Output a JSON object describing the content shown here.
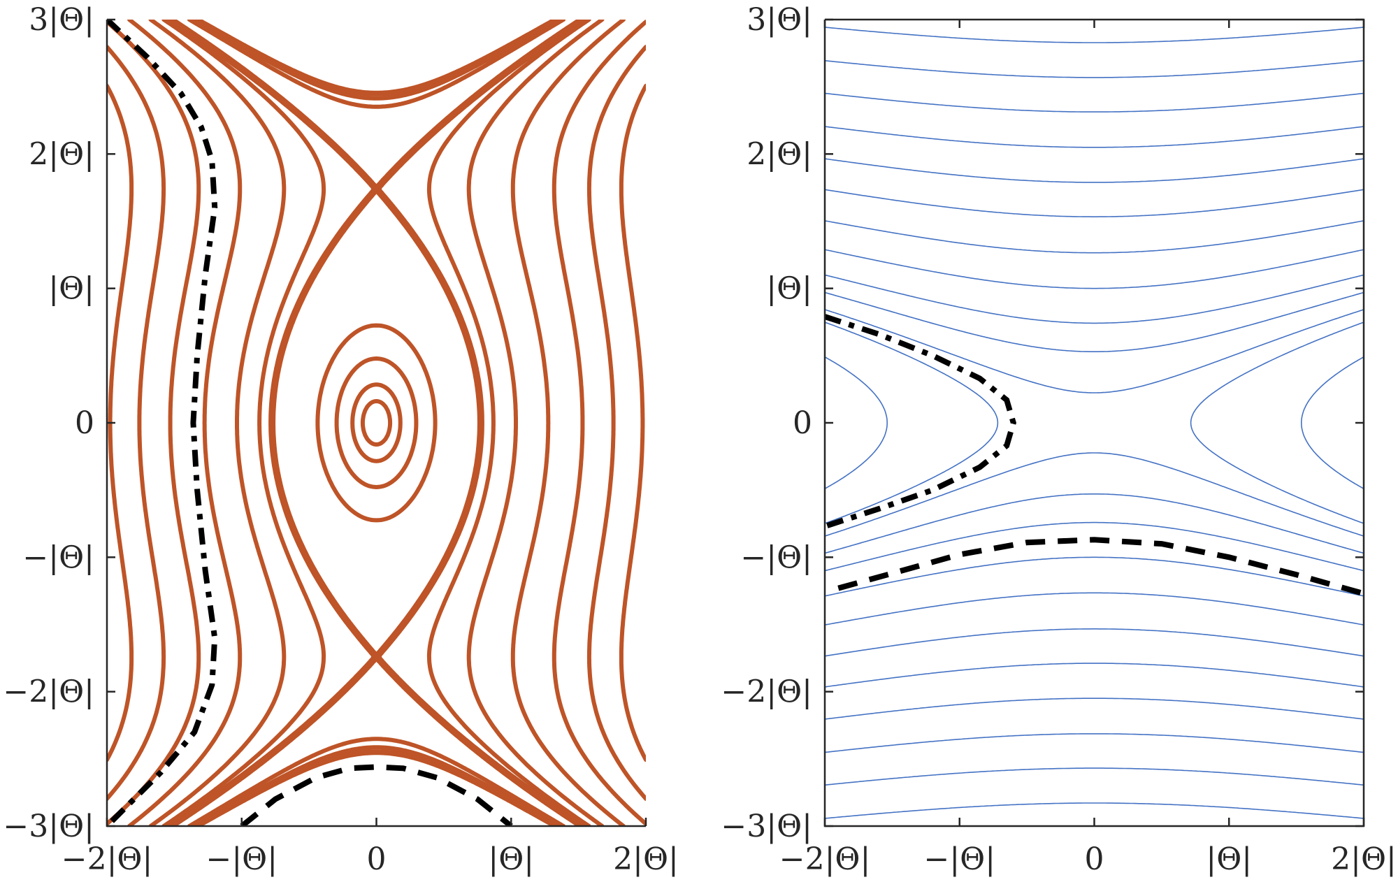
{
  "chart_data": [
    {
      "type": "line",
      "title": "",
      "subtitle": "Left panel: phase portrait (level sets), orange",
      "xlabel": "",
      "ylabel": "",
      "xlim": [
        -2,
        2
      ],
      "ylim": [
        -3,
        3
      ],
      "unit_label": "|Θ|",
      "grid": false,
      "x_ticks": [
        -2,
        -1,
        0,
        1,
        2
      ],
      "x_tick_labels": [
        "−2|Θ|",
        "−|Θ|",
        "0",
        "|Θ|",
        "2|Θ|"
      ],
      "y_ticks": [
        -3,
        -2,
        -1,
        0,
        1,
        2,
        3
      ],
      "y_tick_labels": [
        "−3|Θ|",
        "−2|Θ|",
        "−|Θ|",
        "0",
        "|Θ|",
        "2|Θ|",
        "3|Θ|"
      ],
      "color": "#BE5427",
      "contour_model": {
        "form": "k*x^2 + y^2/2 - y^4/(4*a^2)",
        "k": 1.26,
        "a": 1.74
      },
      "contour_levels": [
        0.013,
        0.04,
        0.11,
        0.24,
        0.757,
        0.95,
        1.35,
        2.05,
        2.95,
        3.9,
        4.92
      ],
      "separatrix_level": 0.757,
      "separatrix_points": {
        "saddles": [
          [
            0,
            1.74
          ],
          [
            0,
            -1.74
          ]
        ],
        "width_at_y0": 0.78
      },
      "series": [
        {
          "name": "dash-dot trajectory",
          "style": "dashdot",
          "color": "#000000",
          "points": [
            [
              -2,
              3
            ],
            [
              -1.7,
              2.72
            ],
            [
              -1.45,
              2.45
            ],
            [
              -1.3,
              2.2
            ],
            [
              -1.22,
              1.95
            ],
            [
              -1.2,
              1.6
            ],
            [
              -1.27,
              1.1
            ],
            [
              -1.33,
              0.5
            ],
            [
              -1.36,
              0
            ],
            [
              -1.33,
              -0.5
            ],
            [
              -1.27,
              -1.1
            ],
            [
              -1.2,
              -1.6
            ],
            [
              -1.22,
              -1.95
            ],
            [
              -1.35,
              -2.3
            ],
            [
              -1.6,
              -2.6
            ],
            [
              -2,
              -3
            ]
          ]
        },
        {
          "name": "dashed trajectory",
          "style": "dashed",
          "color": "#000000",
          "points": [
            [
              -1,
              -3
            ],
            [
              -0.75,
              -2.8
            ],
            [
              -0.45,
              -2.64
            ],
            [
              -0.2,
              -2.57
            ],
            [
              0,
              -2.56
            ],
            [
              0.2,
              -2.57
            ],
            [
              0.45,
              -2.64
            ],
            [
              0.75,
              -2.8
            ],
            [
              1,
              -3
            ]
          ]
        }
      ]
    },
    {
      "type": "line",
      "title": "",
      "subtitle": "Right panel: phase portrait (level sets), blue",
      "xlabel": "",
      "ylabel": "",
      "xlim": [
        -2,
        2
      ],
      "ylim": [
        -3,
        3
      ],
      "unit_label": "|Θ|",
      "grid": false,
      "x_ticks": [
        -2,
        -1,
        0,
        1,
        2
      ],
      "x_tick_labels": [
        "−2|Θ|",
        "−|Θ|",
        "0",
        "|Θ|",
        "2|Θ|"
      ],
      "y_ticks": [
        -3,
        -2,
        -1,
        0,
        1,
        2,
        3
      ],
      "y_tick_labels": [
        "−3|Θ|",
        "−2|Θ|",
        "−|Θ|",
        "0",
        "|Θ|",
        "2|Θ|",
        "3|Θ|"
      ],
      "color": "#4472C4",
      "contour_model": {
        "form": "y^2 - b*x^2/(1+c*x^2)",
        "b": 0.2,
        "c": 0.053
      },
      "contour_levels": [
        -0.42,
        -0.1,
        0.05,
        0.28,
        0.55,
        1.0,
        1.6,
        2.35,
        3.2,
        4.2,
        5.35,
        6.6,
        8.0
      ],
      "separatrix_level": 0,
      "series": [
        {
          "name": "dash-dot trajectory",
          "style": "dashdot",
          "color": "#000000",
          "points": [
            [
              -2,
              0.79
            ],
            [
              -1.6,
              0.66
            ],
            [
              -1.2,
              0.5
            ],
            [
              -0.85,
              0.33
            ],
            [
              -0.65,
              0.17
            ],
            [
              -0.6,
              0
            ],
            [
              -0.65,
              -0.17
            ],
            [
              -0.85,
              -0.33
            ],
            [
              -1.2,
              -0.5
            ],
            [
              -1.6,
              -0.64
            ],
            [
              -2,
              -0.77
            ]
          ]
        },
        {
          "name": "dashed trajectory",
          "style": "dashed",
          "color": "#000000",
          "points": [
            [
              -1.9,
              -1.23
            ],
            [
              -1.5,
              -1.12
            ],
            [
              -1,
              -0.98
            ],
            [
              -0.5,
              -0.89
            ],
            [
              0,
              -0.87
            ],
            [
              0.5,
              -0.9
            ],
            [
              1,
              -1.0
            ],
            [
              1.5,
              -1.13
            ],
            [
              2,
              -1.27
            ]
          ]
        }
      ]
    }
  ]
}
